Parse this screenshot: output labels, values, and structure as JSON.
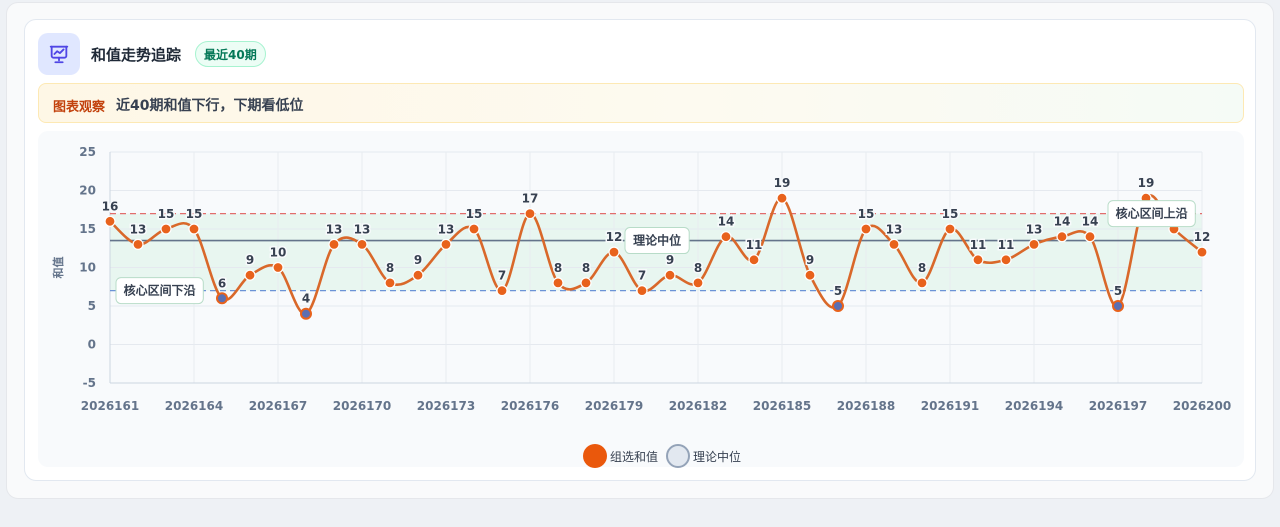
{
  "header": {
    "title": "和值走势追踪",
    "badge": "最近40期",
    "icon": "presentation-chart-icon"
  },
  "observation": {
    "label": "图表观察",
    "text": "近40期和值下行，下期看低位"
  },
  "colors": {
    "line": "#d9682a",
    "point": "#e8621c",
    "low_point": "#5b6fb3",
    "median_line": "#64748b",
    "upper_band": "#e26d6d",
    "lower_band": "#6b93d6",
    "band_fill": "#e3f4ec",
    "legend_line": "#ea580c",
    "legend_median": "#e2e8f0"
  },
  "chart_data": {
    "type": "line",
    "ylabel": "和值",
    "xlabel": "",
    "ylim": [
      -5,
      25
    ],
    "yticks": [
      -5,
      0,
      5,
      10,
      15,
      20,
      25
    ],
    "x": [
      "2026161",
      "2026162",
      "2026163",
      "2026164",
      "2026165",
      "2026166",
      "2026167",
      "2026168",
      "2026169",
      "2026170",
      "2026171",
      "2026172",
      "2026173",
      "2026174",
      "2026175",
      "2026176",
      "2026177",
      "2026178",
      "2026179",
      "2026180",
      "2026181",
      "2026182",
      "2026183",
      "2026184",
      "2026185",
      "2026186",
      "2026187",
      "2026188",
      "2026189",
      "2026190",
      "2026191",
      "2026192",
      "2026193",
      "2026194",
      "2026195",
      "2026196",
      "2026197",
      "2026198",
      "2026199",
      "2026200"
    ],
    "xtick_labels": [
      "2026161",
      "2026164",
      "2026167",
      "2026170",
      "2026173",
      "2026176",
      "2026179",
      "2026182",
      "2026185",
      "2026188",
      "2026191",
      "2026194",
      "2026197",
      "2026200"
    ],
    "series": [
      {
        "name": "组选和值",
        "values": [
          16,
          13,
          15,
          15,
          6,
          9,
          10,
          4,
          13,
          13,
          8,
          9,
          13,
          15,
          7,
          17,
          8,
          8,
          12,
          7,
          9,
          8,
          14,
          11,
          19,
          9,
          5,
          15,
          13,
          8,
          15,
          11,
          11,
          13,
          14,
          14,
          5,
          19,
          15,
          12
        ]
      }
    ],
    "median": {
      "name": "理论中位",
      "value": 13.5
    },
    "band": {
      "upper": 17,
      "lower": 7
    },
    "annotations": {
      "median_label": "理论中位",
      "lower_label": "核心区间下沿",
      "upper_label": "核心区间上沿"
    },
    "legend": {
      "placement": "bottom-center",
      "items": [
        "组选和值",
        "理论中位"
      ]
    },
    "grid": true
  }
}
